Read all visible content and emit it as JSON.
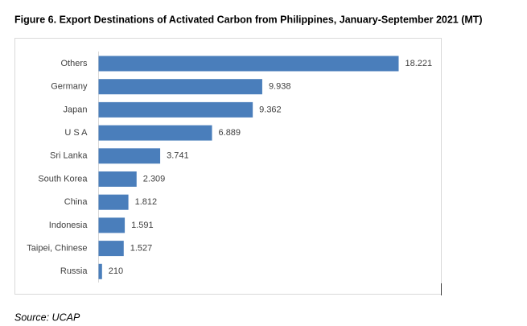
{
  "chart_data": {
    "type": "bar",
    "orientation": "horizontal",
    "title": "Figure 6. Export Destinations of Activated Carbon from Philippines, January-September 2021 (MT)",
    "categories": [
      "Others",
      "Germany",
      "Japan",
      "U S A",
      "Sri Lanka",
      "South Korea",
      "China",
      "Indonesia",
      "Taipei, Chinese",
      "Russia"
    ],
    "values": [
      18221,
      9938,
      9362,
      6889,
      3741,
      2309,
      1812,
      1591,
      1527,
      210
    ],
    "value_labels": [
      "18.221",
      "9.938",
      "9.362",
      "6.889",
      "3.741",
      "2.309",
      "1.812",
      "1.591",
      "1.527",
      "210"
    ],
    "color": "#4a7ebb",
    "source": "Source: UCAP"
  }
}
